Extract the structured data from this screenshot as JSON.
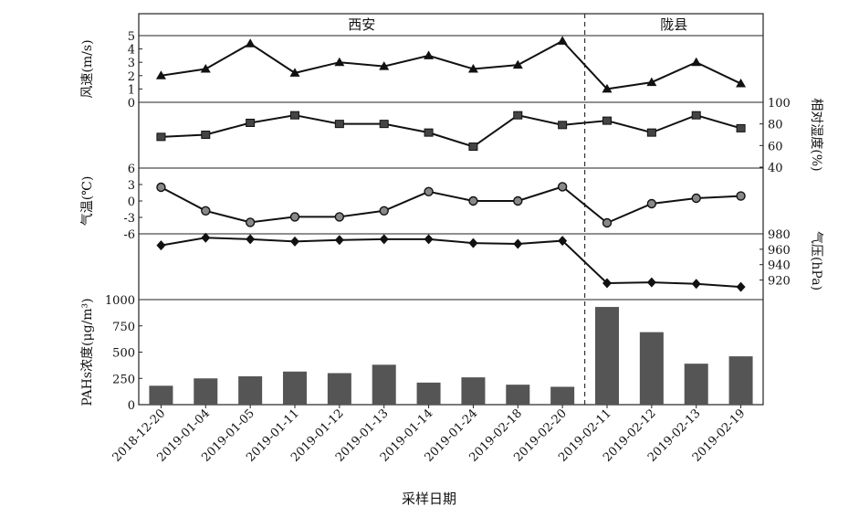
{
  "chart_data": {
    "type": "line",
    "x_title": "采样日期",
    "categories": [
      "2018-12-20",
      "2019-01-04",
      "2019-01-05",
      "2019-01-11",
      "2019-01-12",
      "2019-01-13",
      "2019-01-14",
      "2019-01-24",
      "2019-02-18",
      "2019-02-20",
      "2019-02-11",
      "2019-02-12",
      "2019-02-13",
      "2019-02-19"
    ],
    "regions": [
      {
        "label": "西安",
        "from": 0,
        "to": 9
      },
      {
        "label": "陇县",
        "from": 10,
        "to": 13
      }
    ],
    "panels": [
      {
        "key": "wind",
        "ylabel": "风速(m/s)",
        "axis_side": "left",
        "ylim": [
          0,
          5
        ],
        "ticks": [
          "0",
          "1",
          "2",
          "3",
          "4",
          "5"
        ],
        "marker": "triangle",
        "type": "line",
        "values": [
          2.0,
          2.5,
          4.4,
          2.2,
          3.0,
          2.7,
          3.5,
          2.5,
          2.8,
          4.6,
          1.0,
          1.5,
          3.0,
          1.4
        ]
      },
      {
        "key": "humidity",
        "ylabel": "相对湿度(%)",
        "axis_side": "right",
        "ylim": [
          40,
          100
        ],
        "ticks": [
          "40",
          "60",
          "80",
          "100"
        ],
        "marker": "square",
        "type": "line",
        "values": [
          68,
          70,
          81,
          88,
          80,
          80,
          72,
          59,
          88,
          79,
          83,
          72,
          88,
          76
        ]
      },
      {
        "key": "temperature",
        "ylabel": "气温(℃)",
        "axis_side": "left",
        "ylim": [
          -6,
          6
        ],
        "ticks": [
          "-6",
          "-3",
          "0",
          "3",
          "6"
        ],
        "marker": "circle",
        "type": "line",
        "values": [
          2.5,
          -1.8,
          -3.9,
          -2.9,
          -2.9,
          -1.8,
          1.7,
          0.0,
          0.0,
          2.6,
          -4.0,
          -0.5,
          0.5,
          0.9
        ]
      },
      {
        "key": "pressure",
        "ylabel": "气压(hPa)",
        "axis_side": "right",
        "ylim": [
          910,
          980
        ],
        "ticks": [
          "920",
          "940",
          "960",
          "980"
        ],
        "marker": "diamond",
        "type": "line",
        "values": [
          965,
          975,
          973,
          970,
          972,
          973,
          973,
          968,
          967,
          971,
          916,
          917,
          915,
          911
        ]
      },
      {
        "key": "pahs",
        "ylabel": "PAHs浓度(μg/m³)",
        "axis_side": "left",
        "ylim": [
          0,
          1000
        ],
        "ticks": [
          "0",
          "250",
          "500",
          "750",
          "1000"
        ],
        "marker": "none",
        "type": "bar",
        "values": [
          180,
          250,
          270,
          315,
          300,
          380,
          210,
          260,
          190,
          170,
          930,
          690,
          390,
          460
        ]
      }
    ]
  }
}
